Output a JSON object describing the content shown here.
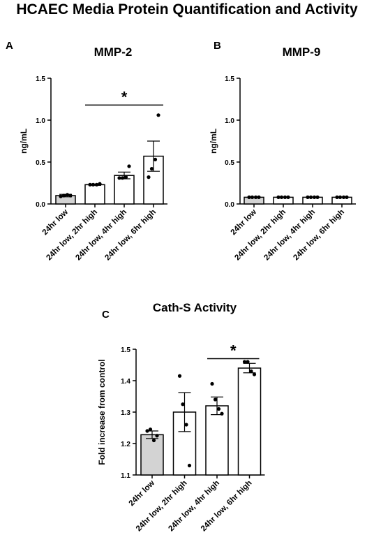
{
  "figure_title": "HCAEC Media Protein Quantification and Activity",
  "colors": {
    "control_bar": "#d3d3d3",
    "bar": "#ffffff",
    "stroke": "#000000"
  },
  "chart_data": [
    {
      "panel": "A",
      "type": "bar",
      "title": "MMP-2",
      "ylabel": "ng/mL",
      "xlabel": "",
      "ylim": [
        0,
        1.5
      ],
      "yticks": [
        "0.0",
        "0.5",
        "1.0",
        "1.5"
      ],
      "categories": [
        "24hr low",
        "24hr low, 2hr high",
        "24hr low, 4hr high",
        "24hr low, 6hr high"
      ],
      "values": [
        0.1,
        0.23,
        0.34,
        0.57
      ],
      "sem": [
        0.015,
        0.008,
        0.04,
        0.18
      ],
      "points": [
        [
          0.09,
          0.1,
          0.11,
          0.1
        ],
        [
          0.23,
          0.23,
          0.23,
          0.24
        ],
        [
          0.31,
          0.31,
          0.32,
          0.45
        ],
        [
          0.32,
          0.42,
          0.53,
          1.06
        ]
      ],
      "significance": {
        "from": 1,
        "to": 3,
        "label": "*",
        "y": 1.18
      }
    },
    {
      "panel": "B",
      "type": "bar",
      "title": "MMP-9",
      "ylabel": "ng/mL",
      "xlabel": "",
      "ylim": [
        0,
        1.5
      ],
      "yticks": [
        "0.0",
        "0.5",
        "1.0",
        "1.5"
      ],
      "categories": [
        "24hr low",
        "24hr low, 2hr high",
        "24hr low, 4hr high",
        "24hr low, 6hr high"
      ],
      "values": [
        0.08,
        0.08,
        0.08,
        0.08
      ],
      "sem": [
        0.003,
        0.003,
        0.003,
        0.003
      ],
      "points": [
        [
          0.08,
          0.08,
          0.08,
          0.08
        ],
        [
          0.08,
          0.08,
          0.08,
          0.08
        ],
        [
          0.08,
          0.08,
          0.08,
          0.08
        ],
        [
          0.08,
          0.08,
          0.08,
          0.08
        ]
      ],
      "significance": null
    },
    {
      "panel": "C",
      "type": "bar",
      "title": "Cath-S Activity",
      "ylabel": "Fold increase from control",
      "xlabel": "",
      "ylim": [
        1.1,
        1.5
      ],
      "yticks": [
        "1.1",
        "1.2",
        "1.3",
        "1.4",
        "1.5"
      ],
      "categories": [
        "24hr low",
        "24hr low, 2hr high",
        "24hr low, 4hr high",
        "24hr low, 6hr high"
      ],
      "values": [
        1.228,
        1.3,
        1.32,
        1.44
      ],
      "sem": [
        0.012,
        0.062,
        0.028,
        0.015
      ],
      "points": [
        [
          1.24,
          1.245,
          1.21,
          1.225
        ],
        [
          1.415,
          1.325,
          1.26,
          1.13
        ],
        [
          1.39,
          1.34,
          1.31,
          1.295
        ],
        [
          1.46,
          1.46,
          1.43,
          1.42
        ]
      ],
      "significance": {
        "from": 2,
        "to": 3,
        "label": "*",
        "y": 1.47
      }
    }
  ]
}
